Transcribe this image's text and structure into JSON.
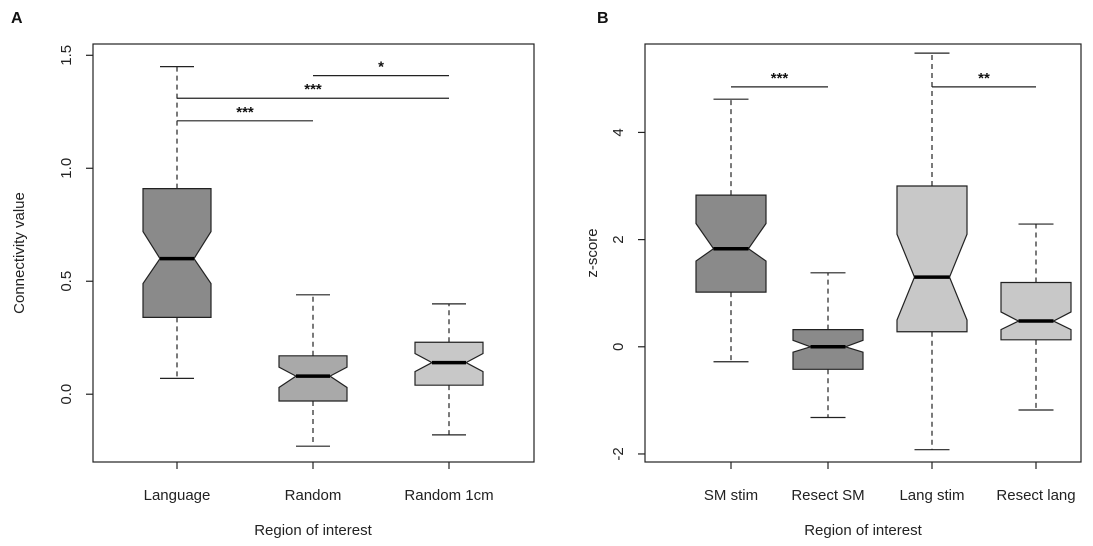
{
  "chart_data": [
    {
      "panel": "A",
      "type": "box",
      "xlabel": "Region of interest",
      "ylabel": "Connectivity value",
      "ylim": [
        -0.3,
        1.55
      ],
      "yticks": [
        0.0,
        0.5,
        1.0,
        1.5
      ],
      "ytick_labels": [
        "0.0",
        "0.5",
        "1.0",
        "1.5"
      ],
      "notched": true,
      "categories": [
        "Language",
        "Random",
        "Random 1cm"
      ],
      "boxes": [
        {
          "label": "Language",
          "whisker_low": 0.07,
          "q1": 0.34,
          "median": 0.6,
          "q3": 0.91,
          "whisker_high": 1.45,
          "notch_low": 0.49,
          "notch_high": 0.72,
          "color": "#8a8a8a"
        },
        {
          "label": "Random",
          "whisker_low": -0.23,
          "q1": -0.03,
          "median": 0.08,
          "q3": 0.17,
          "whisker_high": 0.44,
          "notch_low": 0.03,
          "notch_high": 0.12,
          "color": "#a9a9a9"
        },
        {
          "label": "Random 1cm",
          "whisker_low": -0.18,
          "q1": 0.04,
          "median": 0.14,
          "q3": 0.23,
          "whisker_high": 0.4,
          "notch_low": 0.1,
          "notch_high": 0.18,
          "color": "#c8c8c8"
        }
      ],
      "significance": [
        {
          "from": "Language",
          "to": "Random",
          "y": 1.21,
          "label": "***"
        },
        {
          "from": "Language",
          "to": "Random 1cm",
          "y": 1.31,
          "label": "***"
        },
        {
          "from": "Random",
          "to": "Random 1cm",
          "y": 1.41,
          "label": "*"
        }
      ]
    },
    {
      "panel": "B",
      "type": "box",
      "xlabel": "Region of interest",
      "ylabel": "z-score",
      "ylim": [
        -2.15,
        5.65
      ],
      "yticks": [
        -2,
        0,
        2,
        4
      ],
      "ytick_labels": [
        "-2",
        "0",
        "2",
        "4"
      ],
      "notched": true,
      "categories": [
        "SM stim",
        "Resect SM",
        "Lang stim",
        "Resect lang"
      ],
      "boxes": [
        {
          "label": "SM stim",
          "whisker_low": -0.28,
          "q1": 1.02,
          "median": 1.83,
          "q3": 2.83,
          "whisker_high": 4.62,
          "notch_low": 1.6,
          "notch_high": 2.3,
          "color": "#8a8a8a"
        },
        {
          "label": "Resect SM",
          "whisker_low": -1.32,
          "q1": -0.42,
          "median": 0.0,
          "q3": 0.32,
          "whisker_high": 1.38,
          "notch_low": -0.1,
          "notch_high": 0.12,
          "color": "#8a8a8a"
        },
        {
          "label": "Lang stim",
          "whisker_low": -1.92,
          "q1": 0.28,
          "median": 1.3,
          "q3": 3.0,
          "whisker_high": 5.48,
          "notch_low": 0.5,
          "notch_high": 2.1,
          "color": "#c8c8c8"
        },
        {
          "label": "Resect lang",
          "whisker_low": -1.18,
          "q1": 0.13,
          "median": 0.48,
          "q3": 1.2,
          "whisker_high": 2.29,
          "notch_low": 0.32,
          "notch_high": 0.65,
          "color": "#c8c8c8"
        }
      ],
      "significance": [
        {
          "from": "SM stim",
          "to": "Resect SM",
          "y": 4.85,
          "label": "***"
        },
        {
          "from": "Lang stim",
          "to": "Resect lang",
          "y": 4.85,
          "label": "**"
        }
      ]
    }
  ]
}
